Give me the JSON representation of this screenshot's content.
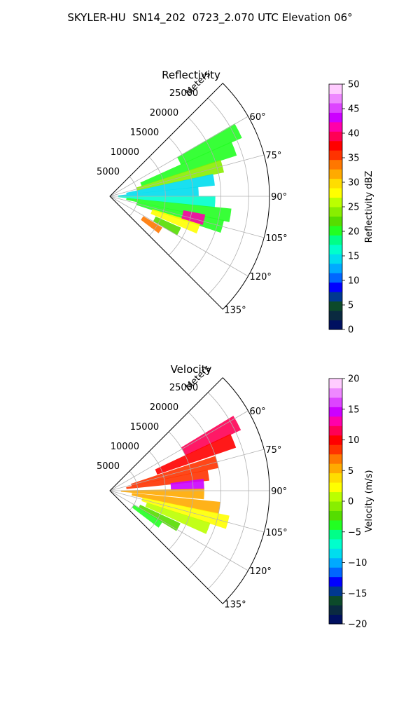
{
  "suptitle": "SKYLER-HU  SN14_202  0723_2.070 UTC Elevation 06°",
  "chart_data": [
    {
      "type": "polar-sector",
      "title": "Reflectivity",
      "range_label": "Meters",
      "azimuth_range_deg": [
        45,
        135
      ],
      "range_ticks_m": [
        5000,
        10000,
        15000,
        20000,
        25000
      ],
      "range_tick_labels": [
        "5000",
        "10000",
        "15000",
        "20000",
        "25000"
      ],
      "azimuth_ticks_deg": [
        60,
        75,
        90,
        105,
        120,
        135
      ],
      "azimuth_tick_labels": [
        "60°",
        "75°",
        "90°",
        "105°",
        "120°",
        "135°"
      ],
      "grid": true,
      "colorbar": {
        "label": "Reflectivity dBZ",
        "range": [
          0,
          50
        ],
        "ticks": [
          0,
          5,
          10,
          15,
          20,
          25,
          30,
          35,
          40,
          45,
          50
        ],
        "tick_labels": [
          "0",
          "5",
          "10",
          "15",
          "20",
          "25",
          "30",
          "35",
          "40",
          "45",
          "50"
        ],
        "colors": [
          "#001060",
          "#0a2a40",
          "#0c4a2a",
          "#003890",
          "#0000ff",
          "#0066ff",
          "#00aaff",
          "#00ddee",
          "#00ffcc",
          "#00ff88",
          "#22ff22",
          "#55dd00",
          "#88ee00",
          "#bbff00",
          "#ffff00",
          "#ffdd00",
          "#ffaa00",
          "#ff7700",
          "#ff3300",
          "#ff0000",
          "#ff0055",
          "#ff00aa",
          "#cc00ff",
          "#dd44ff",
          "#ee88ff",
          "#ffccff"
        ]
      },
      "echoes": [
        {
          "az": 63,
          "r0": 14000,
          "r1": 26000,
          "value": 20
        },
        {
          "az": 69,
          "r0": 6000,
          "r1": 24000,
          "value": 21
        },
        {
          "az": 75,
          "r0": 5000,
          "r1": 21000,
          "value": 24
        },
        {
          "az": 81,
          "r0": 3000,
          "r1": 19000,
          "value": 15
        },
        {
          "az": 87,
          "r0": 1500,
          "r1": 16000,
          "value": 14
        },
        {
          "az": 93,
          "r0": 1500,
          "r1": 19000,
          "value": 16
        },
        {
          "az": 99,
          "r0": 3000,
          "r1": 22000,
          "value": 20
        },
        {
          "az": 105,
          "r0": 5000,
          "r1": 21000,
          "value": 20
        },
        {
          "az": 110,
          "r0": 8000,
          "r1": 17000,
          "value": 27
        },
        {
          "az": 117,
          "r0": 9000,
          "r1": 14000,
          "value": 22
        },
        {
          "az": 104,
          "r0": 13500,
          "r1": 17500,
          "value": 42
        },
        {
          "az": 124,
          "r0": 7000,
          "r1": 11000,
          "value": 33
        }
      ]
    },
    {
      "type": "polar-sector",
      "title": "Velocity",
      "range_label": "Meters",
      "azimuth_range_deg": [
        45,
        135
      ],
      "range_ticks_m": [
        5000,
        10000,
        15000,
        20000,
        25000
      ],
      "range_tick_labels": [
        "5000",
        "10000",
        "15000",
        "20000",
        "25000"
      ],
      "azimuth_ticks_deg": [
        60,
        75,
        90,
        105,
        120,
        135
      ],
      "azimuth_tick_labels": [
        "60°",
        "75°",
        "90°",
        "105°",
        "120°",
        "135°"
      ],
      "grid": true,
      "colorbar": {
        "label": "Velocity (m/s)",
        "range": [
          -20,
          20
        ],
        "ticks": [
          -20,
          -15,
          -10,
          -5,
          0,
          5,
          10,
          15,
          20
        ],
        "tick_labels": [
          "−20",
          "−15",
          "−10",
          "−5",
          "0",
          "5",
          "10",
          "15",
          "20"
        ],
        "colors": [
          "#001060",
          "#0a2a40",
          "#0c4a2a",
          "#003890",
          "#0000ff",
          "#0066ff",
          "#00aaff",
          "#00ddee",
          "#00ffcc",
          "#00ff88",
          "#22ff22",
          "#55dd00",
          "#88ee00",
          "#bbff00",
          "#ffff00",
          "#ffdd00",
          "#ffaa00",
          "#ff7700",
          "#ff3300",
          "#ff0000",
          "#ff0055",
          "#ff00aa",
          "#cc00ff",
          "#dd44ff",
          "#ee88ff",
          "#ffccff"
        ]
      },
      "echoes": [
        {
          "az": 62,
          "r0": 15000,
          "r1": 26000,
          "value": 12
        },
        {
          "az": 68,
          "r0": 9000,
          "r1": 24000,
          "value": 10
        },
        {
          "az": 75,
          "r0": 4000,
          "r1": 20000,
          "value": 8
        },
        {
          "az": 81,
          "r0": 3000,
          "r1": 18000,
          "value": 9
        },
        {
          "az": 86,
          "r0": 11000,
          "r1": 17000,
          "value": 15
        },
        {
          "az": 92,
          "r0": 2000,
          "r1": 17000,
          "value": 6
        },
        {
          "az": 99,
          "r0": 4000,
          "r1": 20000,
          "value": 5
        },
        {
          "az": 105,
          "r0": 6000,
          "r1": 22000,
          "value": 3
        },
        {
          "az": 111,
          "r0": 7000,
          "r1": 19000,
          "value": 1
        },
        {
          "az": 118,
          "r0": 6000,
          "r1": 14000,
          "value": -2
        },
        {
          "az": 124,
          "r0": 5000,
          "r1": 11000,
          "value": -4
        }
      ]
    }
  ]
}
